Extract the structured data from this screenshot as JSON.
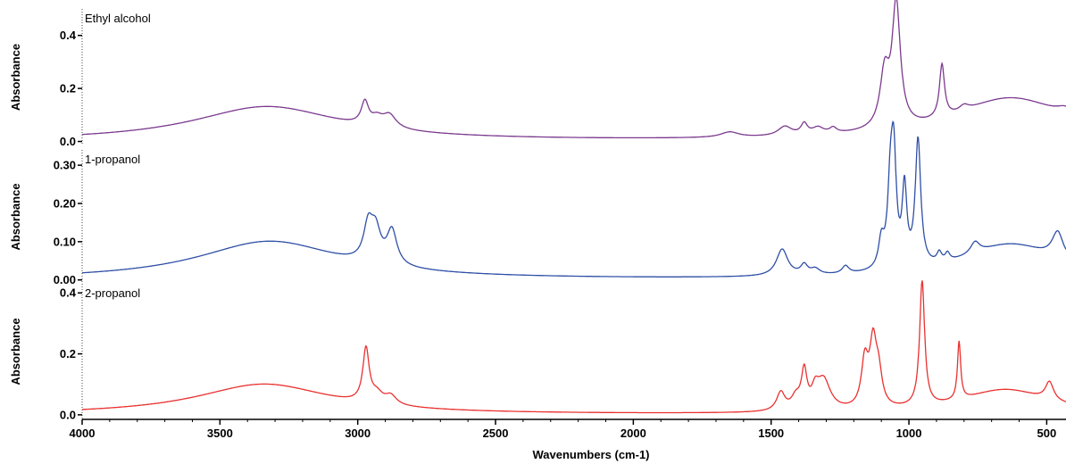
{
  "chart_data": {
    "type": "line",
    "xlabel": "Wavenumbers (cm-1)",
    "xlim": [
      4000,
      430
    ],
    "x_ticks": [
      "4000",
      "3500",
      "3000",
      "2500",
      "2000",
      "1500",
      "1000",
      "500"
    ],
    "x_tick_values": [
      4000,
      3500,
      3000,
      2500,
      2000,
      1500,
      1000,
      500
    ],
    "grid": false,
    "panels": [
      {
        "title": "Ethyl alcohol",
        "ylabel": "Absorbance",
        "ylim": [
          -0.015,
          0.5
        ],
        "y_ticks": [
          "0.0",
          "0.2",
          "0.4"
        ],
        "y_tick_values": [
          0.0,
          0.2,
          0.4
        ],
        "color": "#7b3a8e",
        "baseline": 0.0,
        "bands": [
          {
            "center": 3330,
            "height": 0.13,
            "width": 330
          },
          {
            "center": 2974,
            "height": 0.085,
            "width": 16
          },
          {
            "center": 2930,
            "height": 0.03,
            "width": 25
          },
          {
            "center": 2885,
            "height": 0.05,
            "width": 30
          },
          {
            "center": 1650,
            "height": 0.02,
            "width": 40
          },
          {
            "center": 1450,
            "height": 0.035,
            "width": 30
          },
          {
            "center": 1380,
            "height": 0.04,
            "width": 14
          },
          {
            "center": 1330,
            "height": 0.025,
            "width": 25
          },
          {
            "center": 1275,
            "height": 0.02,
            "width": 15
          },
          {
            "center": 1088,
            "height": 0.2,
            "width": 20
          },
          {
            "center": 1046,
            "height": 0.46,
            "width": 18
          },
          {
            "center": 880,
            "height": 0.2,
            "width": 11
          },
          {
            "center": 800,
            "height": 0.02,
            "width": 20
          },
          {
            "center": 630,
            "height": 0.16,
            "width": 260
          },
          {
            "center": 430,
            "height": 0.03,
            "width": 40
          }
        ]
      },
      {
        "title": "1-propanol",
        "ylabel": "Absorbance",
        "ylim": [
          -0.01,
          0.34
        ],
        "y_ticks": [
          "0.00",
          "0.10",
          "0.20",
          "0.30"
        ],
        "y_tick_values": [
          0.0,
          0.1,
          0.2,
          0.3
        ],
        "color": "#2f4fa6",
        "baseline": 0.0,
        "bands": [
          {
            "center": 3320,
            "height": 0.1,
            "width": 320
          },
          {
            "center": 2962,
            "height": 0.09,
            "width": 20
          },
          {
            "center": 2935,
            "height": 0.08,
            "width": 22
          },
          {
            "center": 2876,
            "height": 0.09,
            "width": 22
          },
          {
            "center": 1460,
            "height": 0.07,
            "width": 25
          },
          {
            "center": 1380,
            "height": 0.025,
            "width": 15
          },
          {
            "center": 1340,
            "height": 0.015,
            "width": 20
          },
          {
            "center": 1230,
            "height": 0.02,
            "width": 15
          },
          {
            "center": 1100,
            "height": 0.07,
            "width": 12
          },
          {
            "center": 1067,
            "height": 0.2,
            "width": 12
          },
          {
            "center": 1055,
            "height": 0.26,
            "width": 11
          },
          {
            "center": 1016,
            "height": 0.2,
            "width": 10
          },
          {
            "center": 967,
            "height": 0.33,
            "width": 12
          },
          {
            "center": 890,
            "height": 0.025,
            "width": 10
          },
          {
            "center": 860,
            "height": 0.02,
            "width": 10
          },
          {
            "center": 760,
            "height": 0.03,
            "width": 20
          },
          {
            "center": 630,
            "height": 0.09,
            "width": 220
          },
          {
            "center": 460,
            "height": 0.07,
            "width": 25
          }
        ]
      },
      {
        "title": "2-propanol",
        "ylabel": "Absorbance",
        "ylim": [
          -0.015,
          0.43
        ],
        "y_ticks": [
          "0.0",
          "0.2",
          "0.4"
        ],
        "y_tick_values": [
          0.0,
          0.2,
          0.4
        ],
        "color": "#e8312f",
        "baseline": 0.0,
        "bands": [
          {
            "center": 3340,
            "height": 0.1,
            "width": 300
          },
          {
            "center": 2970,
            "height": 0.175,
            "width": 14
          },
          {
            "center": 2930,
            "height": 0.03,
            "width": 25
          },
          {
            "center": 2880,
            "height": 0.03,
            "width": 25
          },
          {
            "center": 1465,
            "height": 0.06,
            "width": 18
          },
          {
            "center": 1410,
            "height": 0.04,
            "width": 20
          },
          {
            "center": 1380,
            "height": 0.12,
            "width": 12
          },
          {
            "center": 1340,
            "height": 0.05,
            "width": 15
          },
          {
            "center": 1310,
            "height": 0.1,
            "width": 30
          },
          {
            "center": 1160,
            "height": 0.15,
            "width": 15
          },
          {
            "center": 1130,
            "height": 0.2,
            "width": 15
          },
          {
            "center": 1110,
            "height": 0.1,
            "width": 15
          },
          {
            "center": 952,
            "height": 0.41,
            "width": 11
          },
          {
            "center": 818,
            "height": 0.19,
            "width": 7
          },
          {
            "center": 650,
            "height": 0.08,
            "width": 200
          },
          {
            "center": 490,
            "height": 0.06,
            "width": 18
          }
        ]
      }
    ]
  }
}
